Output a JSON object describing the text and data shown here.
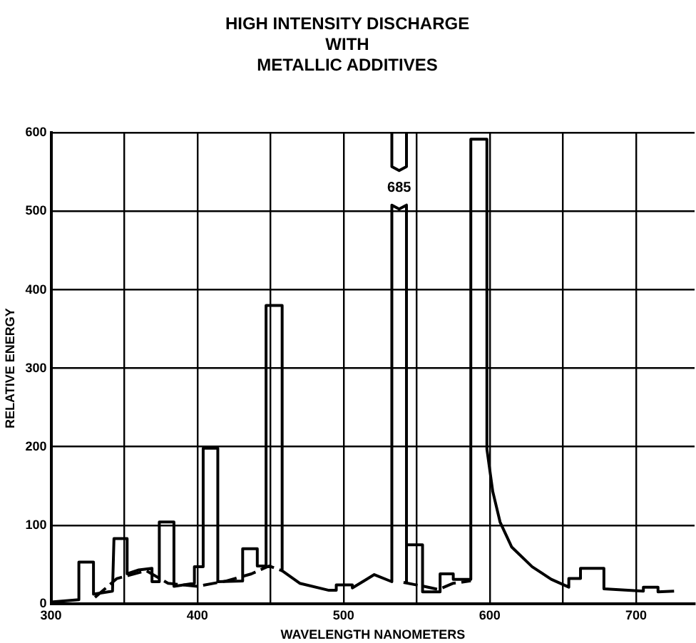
{
  "chart_data": {
    "type": "line",
    "title": "HIGH INTENSITY DISCHARGE\nWITH\nMETALLIC ADDITIVES",
    "xlabel": "WAVELENGTH NANOMETERS",
    "ylabel": "RELATIVE ENERGY",
    "xlim": [
      300,
      740
    ],
    "xticks": [
      300,
      {
        "value": 350,
        "label": null
      },
      400,
      {
        "value": 450,
        "label": null
      },
      500,
      {
        "value": 550,
        "label": null
      },
      600,
      {
        "value": 650,
        "label": null
      },
      700
    ],
    "ylim": [
      0,
      600
    ],
    "yticks": [
      0,
      100,
      200,
      300,
      400,
      500,
      600
    ],
    "grid": true,
    "marker": "none",
    "series": [
      {
        "color": "#000000",
        "line_style": "solid",
        "x": [
          300,
          319,
          319,
          329,
          329,
          342,
          343,
          352,
          352,
          360,
          369,
          369,
          374,
          374,
          384,
          384,
          398,
          398,
          404,
          404,
          414,
          414,
          431,
          431,
          441,
          441,
          447,
          447,
          458,
          458,
          470,
          490,
          495,
          495,
          506,
          506,
          521,
          533,
          533,
          538,
          543,
          543,
          543,
          554,
          554,
          566,
          566,
          575,
          575,
          587,
          587,
          598,
          598,
          602,
          607,
          615,
          629,
          642,
          654,
          654,
          662,
          662,
          678,
          678,
          705,
          705,
          715,
          715,
          726
        ],
        "values": [
          2,
          5,
          53,
          53,
          12,
          16,
          83,
          83,
          38,
          43,
          45,
          28,
          28,
          104,
          104,
          22,
          26,
          47,
          47,
          198,
          198,
          28,
          29,
          70,
          70,
          48,
          48,
          380,
          380,
          42,
          26,
          17,
          17,
          24,
          24,
          20,
          37,
          28,
          508,
          503,
          508,
          28,
          75,
          75,
          15,
          15,
          38,
          38,
          31,
          31,
          592,
          592,
          197,
          143,
          104,
          72,
          47,
          31,
          21,
          32,
          32,
          45,
          45,
          19,
          16,
          21,
          21,
          15,
          16
        ]
      },
      {
        "color": "#000000",
        "line_style": "solid",
        "x": [
          533,
          533,
          538,
          543,
          543
        ],
        "values": [
          600,
          557,
          552,
          557,
          600
        ]
      },
      {
        "color": "#000000",
        "line_style": "dashed",
        "x": [
          330,
          345,
          365,
          380,
          400,
          420,
          437,
          449,
          458,
          500,
          541,
          555,
          565,
          575,
          587
        ],
        "values": [
          8,
          32,
          42,
          26,
          22,
          29,
          38,
          48,
          42,
          null,
          27,
          22,
          18,
          26,
          29
        ]
      }
    ],
    "annotations": [
      "685"
    ]
  }
}
